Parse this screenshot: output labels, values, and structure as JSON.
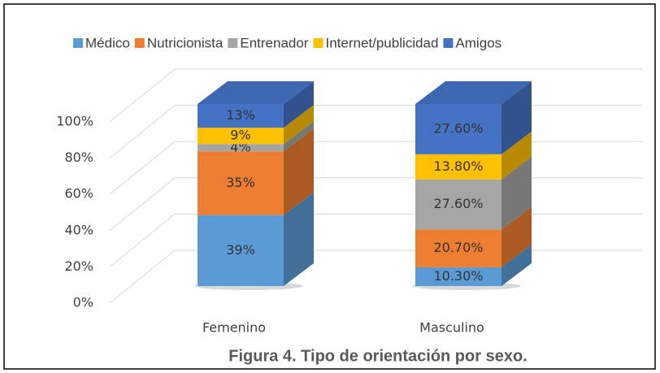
{
  "chart_data": {
    "type": "bar3d-stacked",
    "title": "Figura 4. Tipo de orientación por sexo.",
    "categories": [
      "Femenino",
      "Masculino"
    ],
    "series": [
      {
        "name": "Médico",
        "color": "#5b9bd5",
        "values": [
          39,
          10.3
        ],
        "value_labels": [
          "39%",
          "10.30%"
        ]
      },
      {
        "name": "Nutricionista",
        "color": "#ed7d31",
        "values": [
          35,
          20.7
        ],
        "value_labels": [
          "35%",
          "20.70%"
        ]
      },
      {
        "name": "Entrenador",
        "color": "#a5a5a5",
        "values": [
          4,
          27.6
        ],
        "value_labels": [
          "4%",
          "27.60%"
        ]
      },
      {
        "name": "Internet/publicidad",
        "color": "#ffc000",
        "values": [
          9,
          13.8
        ],
        "value_labels": [
          "9%",
          "13.80%"
        ]
      },
      {
        "name": "Amigos",
        "color": "#4472c4",
        "values": [
          13,
          27.6
        ],
        "value_labels": [
          "13%",
          "27.60%"
        ]
      }
    ],
    "ylim": [
      0,
      100
    ],
    "yticks": [
      {
        "value": 0,
        "label": "0%"
      },
      {
        "value": 20,
        "label": "20%"
      },
      {
        "value": 40,
        "label": "40%"
      },
      {
        "value": 60,
        "label": "60%"
      },
      {
        "value": 80,
        "label": "80%"
      },
      {
        "value": 100,
        "label": "100%"
      }
    ],
    "grid": true,
    "legend": "top"
  }
}
